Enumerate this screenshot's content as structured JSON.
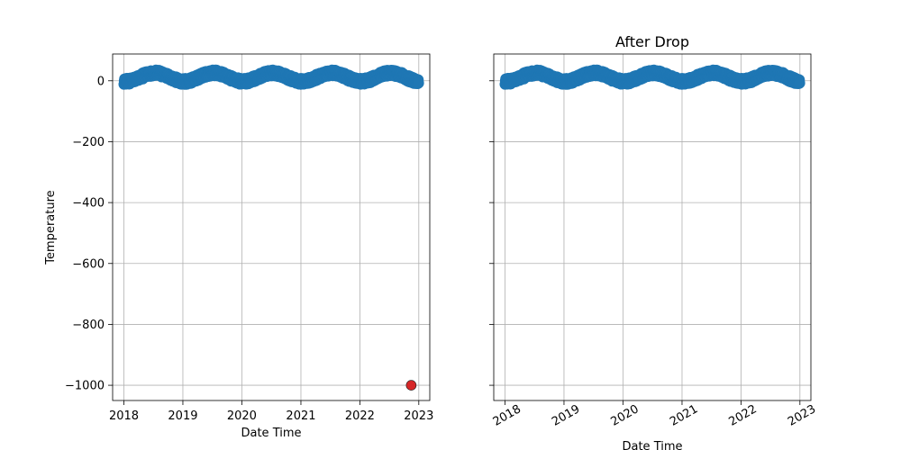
{
  "chart_data": [
    {
      "type": "scatter",
      "title": "",
      "xlabel": "Date Time",
      "ylabel": "Temperature",
      "xlim": [
        "2017-10-23",
        "2023-03-10"
      ],
      "ylim": [
        -1050,
        88
      ],
      "x_ticks": [
        "2018",
        "2019",
        "2020",
        "2021",
        "2022",
        "2023"
      ],
      "y_ticks": [
        "0",
        "−200",
        "−400",
        "−600",
        "−800",
        "−1000"
      ],
      "grid": true,
      "series": [
        {
          "color": "#1f77b4",
          "pattern": "daily",
          "date_range": [
            "2018-01-01",
            "2022-12-31"
          ],
          "seasonal_mean": 12,
          "seasonal_amplitude": 14,
          "noise": 10
        },
        {
          "color": "#d62728",
          "outlier": true,
          "points": [
            {
              "x": "2022-11-15",
              "y": -1000
            }
          ]
        }
      ]
    },
    {
      "type": "scatter",
      "title": "After Drop",
      "xlabel": "Date Time",
      "ylabel": "",
      "xlim": [
        "2017-10-23",
        "2023-03-10"
      ],
      "ylim": [
        -1050,
        88
      ],
      "x_ticks": [
        "2018",
        "2019",
        "2020",
        "2021",
        "2022",
        "2023"
      ],
      "y_ticks": [],
      "x_tick_rotation": 30,
      "grid": true,
      "series": [
        {
          "color": "#1f77b4",
          "pattern": "daily",
          "date_range": [
            "2018-01-01",
            "2022-12-31"
          ],
          "seasonal_mean": 12,
          "seasonal_amplitude": 14,
          "noise": 10
        }
      ]
    }
  ]
}
